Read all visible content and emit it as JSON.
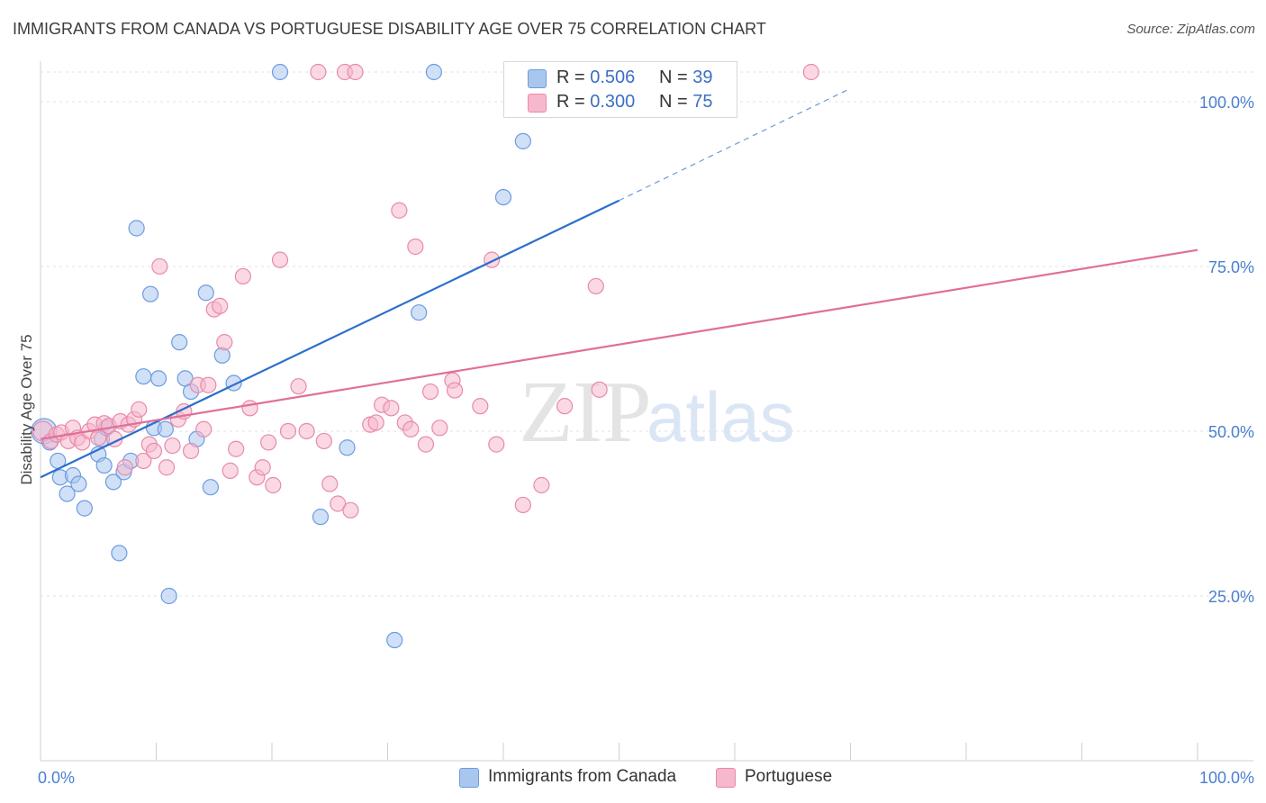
{
  "title": "IMMIGRANTS FROM CANADA VS PORTUGUESE DISABILITY AGE OVER 75 CORRELATION CHART",
  "source": "Source: ZipAtlas.com",
  "watermark": {
    "zip": "ZIP",
    "atlas": "atlas"
  },
  "legend": {
    "r_label": "R =",
    "n_label": "N =",
    "rows": [
      {
        "r": "0.506",
        "n": "39",
        "color": "#a9c7ee",
        "border": "#6d9be0"
      },
      {
        "r": "0.300",
        "n": "75",
        "color": "#f6b8cd",
        "border": "#e88aaa"
      }
    ]
  },
  "bottom_legend": [
    {
      "label": "Immigrants from Canada",
      "color": "#a9c7ee"
    },
    {
      "label": "Portuguese",
      "color": "#f6b8cd"
    }
  ],
  "chart_data": {
    "type": "scatter",
    "title": "IMMIGRANTS FROM CANADA VS PORTUGUESE DISABILITY AGE OVER 75 CORRELATION CHART",
    "xlabel": "",
    "ylabel": "Disability Age Over 75",
    "xlim": [
      0,
      100
    ],
    "ylim": [
      0,
      100
    ],
    "x_tick_labels": [
      {
        "value": 0,
        "label": "0.0%"
      },
      {
        "value": 100,
        "label": "100.0%"
      }
    ],
    "y_tick_labels": [
      {
        "value": 25,
        "label": "25.0%"
      },
      {
        "value": 50,
        "label": "50.0%"
      },
      {
        "value": 75,
        "label": "75.0%"
      },
      {
        "value": 100,
        "label": "100.0%"
      }
    ],
    "grid": true,
    "series": [
      {
        "name": "Immigrants from Canada",
        "color": "#a9c7ee",
        "stroke": "#6d9be0",
        "line_color": "#2c6fcc",
        "trend": {
          "x0": 0,
          "y0": 43,
          "x1": 50,
          "y1": 85,
          "dash_to_x": 70,
          "dash_to_y": 102
        },
        "points": [
          [
            0.3,
            50.0
          ],
          [
            0.8,
            48.3
          ],
          [
            1.5,
            45.5
          ],
          [
            1.7,
            43.0
          ],
          [
            2.3,
            40.5
          ],
          [
            2.8,
            43.3
          ],
          [
            3.3,
            42.0
          ],
          [
            3.8,
            38.3
          ],
          [
            5.0,
            46.5
          ],
          [
            5.3,
            48.8
          ],
          [
            5.5,
            44.8
          ],
          [
            5.7,
            50.5
          ],
          [
            6.3,
            42.3
          ],
          [
            6.8,
            31.5
          ],
          [
            7.2,
            43.8
          ],
          [
            7.8,
            45.5
          ],
          [
            8.3,
            80.8
          ],
          [
            8.9,
            58.3
          ],
          [
            9.5,
            70.8
          ],
          [
            9.8,
            50.5
          ],
          [
            10.2,
            58.0
          ],
          [
            10.8,
            50.3
          ],
          [
            11.1,
            25.0
          ],
          [
            12.0,
            63.5
          ],
          [
            12.5,
            58.0
          ],
          [
            13.0,
            56.0
          ],
          [
            13.5,
            48.8
          ],
          [
            14.3,
            71.0
          ],
          [
            14.7,
            41.5
          ],
          [
            15.7,
            61.5
          ],
          [
            16.7,
            57.3
          ],
          [
            20.7,
            104.5
          ],
          [
            24.2,
            37.0
          ],
          [
            26.5,
            47.5
          ],
          [
            30.6,
            18.3
          ],
          [
            32.7,
            68.0
          ],
          [
            34.0,
            104.5
          ],
          [
            40.0,
            85.5
          ],
          [
            41.7,
            94.0
          ]
        ]
      },
      {
        "name": "Portuguese",
        "color": "#f6b8cd",
        "stroke": "#e88aaa",
        "line_color": "#e06f98",
        "trend": {
          "x0": 0,
          "y0": 48.8,
          "x1": 100,
          "y1": 77.5
        },
        "points": [
          [
            0.2,
            50.0
          ],
          [
            0.9,
            48.5
          ],
          [
            1.4,
            49.5
          ],
          [
            1.8,
            49.8
          ],
          [
            2.4,
            48.5
          ],
          [
            2.8,
            50.5
          ],
          [
            3.2,
            49.0
          ],
          [
            3.6,
            48.3
          ],
          [
            4.2,
            50.0
          ],
          [
            4.7,
            51.0
          ],
          [
            5.0,
            49.0
          ],
          [
            5.5,
            51.2
          ],
          [
            5.9,
            50.8
          ],
          [
            6.4,
            48.8
          ],
          [
            6.9,
            51.5
          ],
          [
            7.3,
            44.5
          ],
          [
            7.6,
            51.0
          ],
          [
            8.1,
            51.8
          ],
          [
            8.5,
            53.3
          ],
          [
            8.9,
            45.5
          ],
          [
            9.4,
            48.0
          ],
          [
            9.8,
            47.0
          ],
          [
            10.3,
            75.0
          ],
          [
            10.9,
            44.5
          ],
          [
            11.4,
            47.8
          ],
          [
            11.9,
            51.8
          ],
          [
            12.4,
            53.0
          ],
          [
            13.0,
            47.0
          ],
          [
            13.6,
            57.0
          ],
          [
            14.1,
            50.3
          ],
          [
            14.5,
            57.0
          ],
          [
            15.0,
            68.5
          ],
          [
            15.5,
            69.0
          ],
          [
            15.9,
            63.5
          ],
          [
            16.4,
            44.0
          ],
          [
            16.9,
            47.3
          ],
          [
            17.5,
            73.5
          ],
          [
            18.1,
            53.5
          ],
          [
            18.7,
            43.0
          ],
          [
            19.2,
            44.5
          ],
          [
            19.7,
            48.3
          ],
          [
            20.1,
            41.8
          ],
          [
            20.7,
            76.0
          ],
          [
            21.4,
            50.0
          ],
          [
            22.3,
            56.8
          ],
          [
            23.0,
            50.0
          ],
          [
            24.0,
            104.5
          ],
          [
            24.5,
            48.5
          ],
          [
            25.0,
            42.0
          ],
          [
            25.7,
            39.0
          ],
          [
            26.3,
            104.5
          ],
          [
            26.8,
            38.0
          ],
          [
            27.2,
            104.5
          ],
          [
            28.5,
            51.0
          ],
          [
            29.0,
            51.3
          ],
          [
            29.5,
            54.0
          ],
          [
            30.3,
            53.5
          ],
          [
            31.0,
            83.5
          ],
          [
            31.5,
            51.3
          ],
          [
            32.0,
            50.3
          ],
          [
            32.4,
            78.0
          ],
          [
            33.3,
            48.0
          ],
          [
            33.7,
            56.0
          ],
          [
            34.5,
            50.5
          ],
          [
            35.6,
            57.7
          ],
          [
            35.8,
            56.2
          ],
          [
            38.0,
            53.8
          ],
          [
            39.0,
            76.0
          ],
          [
            39.4,
            48.0
          ],
          [
            41.7,
            38.8
          ],
          [
            43.3,
            41.8
          ],
          [
            45.3,
            53.8
          ],
          [
            48.0,
            72.0
          ],
          [
            48.3,
            56.3
          ],
          [
            66.6,
            104.5
          ]
        ]
      }
    ]
  }
}
